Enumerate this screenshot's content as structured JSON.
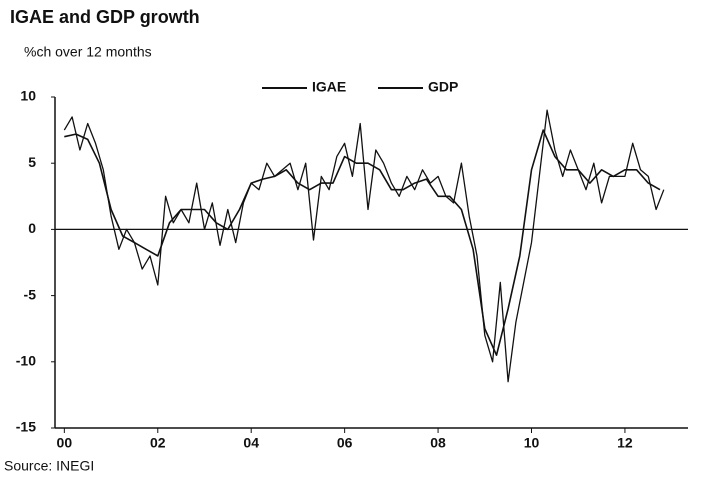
{
  "chart_data": {
    "type": "line",
    "title": "IGAE and GDP growth",
    "subtitle": "%ch over 12 months",
    "source": "Source: INEGI",
    "xlim": [
      1999.8,
      2013.35
    ],
    "ylim": [
      -15,
      10
    ],
    "xticks": [
      {
        "value": 2000,
        "label": "00"
      },
      {
        "value": 2002,
        "label": "02"
      },
      {
        "value": 2004,
        "label": "04"
      },
      {
        "value": 2006,
        "label": "06"
      },
      {
        "value": 2008,
        "label": "08"
      },
      {
        "value": 2010,
        "label": "10"
      },
      {
        "value": 2012,
        "label": "12"
      }
    ],
    "yticks": [
      -15,
      -10,
      -5,
      0,
      5,
      10
    ],
    "series": [
      {
        "name": "IGAE",
        "color": "#111111",
        "x": [
          2000,
          2000.167,
          2000.333,
          2000.5,
          2000.667,
          2000.833,
          2001,
          2001.167,
          2001.333,
          2001.5,
          2001.667,
          2001.833,
          2002,
          2002.167,
          2002.333,
          2002.5,
          2002.667,
          2002.833,
          2003,
          2003.167,
          2003.333,
          2003.5,
          2003.667,
          2003.833,
          2004,
          2004.167,
          2004.333,
          2004.5,
          2004.667,
          2004.833,
          2005,
          2005.167,
          2005.333,
          2005.5,
          2005.667,
          2005.833,
          2006,
          2006.167,
          2006.333,
          2006.5,
          2006.667,
          2006.833,
          2007,
          2007.167,
          2007.333,
          2007.5,
          2007.667,
          2007.833,
          2008,
          2008.167,
          2008.333,
          2008.5,
          2008.667,
          2008.833,
          2009,
          2009.167,
          2009.333,
          2009.5,
          2009.667,
          2009.833,
          2010,
          2010.167,
          2010.333,
          2010.5,
          2010.667,
          2010.833,
          2011,
          2011.167,
          2011.333,
          2011.5,
          2011.667,
          2011.833,
          2012,
          2012.167,
          2012.333,
          2012.5,
          2012.667,
          2012.833
        ],
        "values": [
          7.5,
          8.5,
          6.0,
          8.0,
          6.5,
          4.5,
          1.0,
          -1.5,
          0.0,
          -1.0,
          -3.0,
          -2.0,
          -4.2,
          2.5,
          0.5,
          1.5,
          0.5,
          3.5,
          0.0,
          2.0,
          -1.2,
          1.5,
          -1.0,
          2.0,
          3.5,
          3.0,
          5.0,
          4.0,
          4.5,
          5.0,
          3.0,
          5.0,
          -0.8,
          4.0,
          3.0,
          5.5,
          6.5,
          4.0,
          8.0,
          1.5,
          6.0,
          5.0,
          3.5,
          2.5,
          4.0,
          3.0,
          4.5,
          3.5,
          4.0,
          2.5,
          2.0,
          5.0,
          1.0,
          -2.0,
          -8.0,
          -10.0,
          -4.0,
          -11.5,
          -7.0,
          -4.0,
          -1.0,
          4.0,
          9.0,
          6.0,
          4.0,
          6.0,
          4.5,
          3.0,
          5.0,
          2.0,
          4.0,
          4.0,
          4.0,
          6.5,
          4.5,
          4.0,
          1.5,
          3.0
        ]
      },
      {
        "name": "GDP",
        "color": "#111111",
        "x": [
          2000,
          2000.25,
          2000.5,
          2000.75,
          2001,
          2001.25,
          2001.5,
          2001.75,
          2002,
          2002.25,
          2002.5,
          2002.75,
          2003,
          2003.25,
          2003.5,
          2003.75,
          2004,
          2004.25,
          2004.5,
          2004.75,
          2005,
          2005.25,
          2005.5,
          2005.75,
          2006,
          2006.25,
          2006.5,
          2006.75,
          2007,
          2007.25,
          2007.5,
          2007.75,
          2008,
          2008.25,
          2008.5,
          2008.75,
          2009,
          2009.25,
          2009.5,
          2009.75,
          2010,
          2010.25,
          2010.5,
          2010.75,
          2011,
          2011.25,
          2011.5,
          2011.75,
          2012,
          2012.25,
          2012.5,
          2012.75
        ],
        "values": [
          7.0,
          7.2,
          6.8,
          5.0,
          1.5,
          -0.5,
          -1.0,
          -1.5,
          -2.0,
          0.5,
          1.5,
          1.5,
          1.5,
          0.5,
          0.0,
          1.5,
          3.5,
          3.8,
          4.0,
          4.5,
          3.5,
          3.0,
          3.5,
          3.5,
          5.5,
          5.0,
          5.0,
          4.5,
          3.0,
          3.0,
          3.5,
          3.8,
          2.5,
          2.5,
          1.5,
          -1.5,
          -7.5,
          -9.5,
          -6.0,
          -2.0,
          4.5,
          7.5,
          5.5,
          4.5,
          4.5,
          3.5,
          4.5,
          4.0,
          4.5,
          4.5,
          3.5,
          3.0
        ]
      }
    ]
  }
}
